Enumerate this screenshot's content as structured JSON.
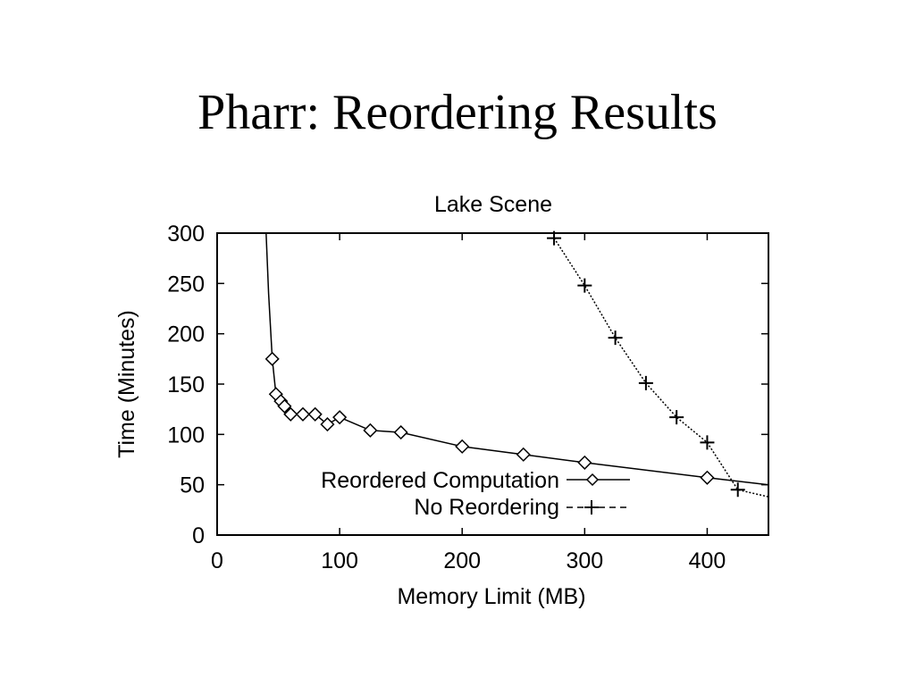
{
  "slide": {
    "title": "Pharr: Reordering Results"
  },
  "chart_data": {
    "type": "line",
    "title": "Lake Scene",
    "xlabel": "Memory Limit (MB)",
    "ylabel": "Time (Minutes)",
    "xlim": [
      0,
      450
    ],
    "ylim": [
      0,
      300
    ],
    "x_ticks": [
      0,
      100,
      200,
      300,
      400
    ],
    "y_ticks": [
      0,
      50,
      100,
      150,
      200,
      250,
      300
    ],
    "grid": false,
    "legend": "bottom-right",
    "series": [
      {
        "name": "Reordered Computation",
        "marker": "diamond",
        "line_style": "solid",
        "line": [
          [
            40,
            300
          ],
          [
            42,
            240
          ],
          [
            45,
            175
          ],
          [
            48,
            140
          ],
          [
            52,
            133
          ],
          [
            55,
            128
          ],
          [
            60,
            120
          ],
          [
            70,
            120
          ],
          [
            80,
            120
          ],
          [
            90,
            110
          ],
          [
            100,
            117
          ],
          [
            125,
            104
          ],
          [
            150,
            102
          ],
          [
            200,
            88
          ],
          [
            250,
            80
          ],
          [
            300,
            72
          ],
          [
            400,
            57
          ],
          [
            450,
            50
          ]
        ],
        "points": [
          [
            45,
            175
          ],
          [
            48,
            140
          ],
          [
            52,
            133
          ],
          [
            55,
            128
          ],
          [
            60,
            120
          ],
          [
            70,
            120
          ],
          [
            80,
            120
          ],
          [
            90,
            110
          ],
          [
            100,
            117
          ],
          [
            125,
            104
          ],
          [
            150,
            102
          ],
          [
            200,
            88
          ],
          [
            250,
            80
          ],
          [
            300,
            72
          ],
          [
            400,
            57
          ]
        ]
      },
      {
        "name": "No Reordering",
        "marker": "plus",
        "line_style": "dashed",
        "line": [
          [
            275,
            295
          ],
          [
            300,
            248
          ],
          [
            325,
            196
          ],
          [
            350,
            151
          ],
          [
            375,
            117
          ],
          [
            400,
            92
          ],
          [
            425,
            45
          ],
          [
            450,
            38
          ]
        ],
        "points": [
          [
            275,
            295
          ],
          [
            300,
            248
          ],
          [
            325,
            196
          ],
          [
            350,
            151
          ],
          [
            375,
            117
          ],
          [
            400,
            92
          ],
          [
            425,
            45
          ]
        ]
      }
    ]
  }
}
